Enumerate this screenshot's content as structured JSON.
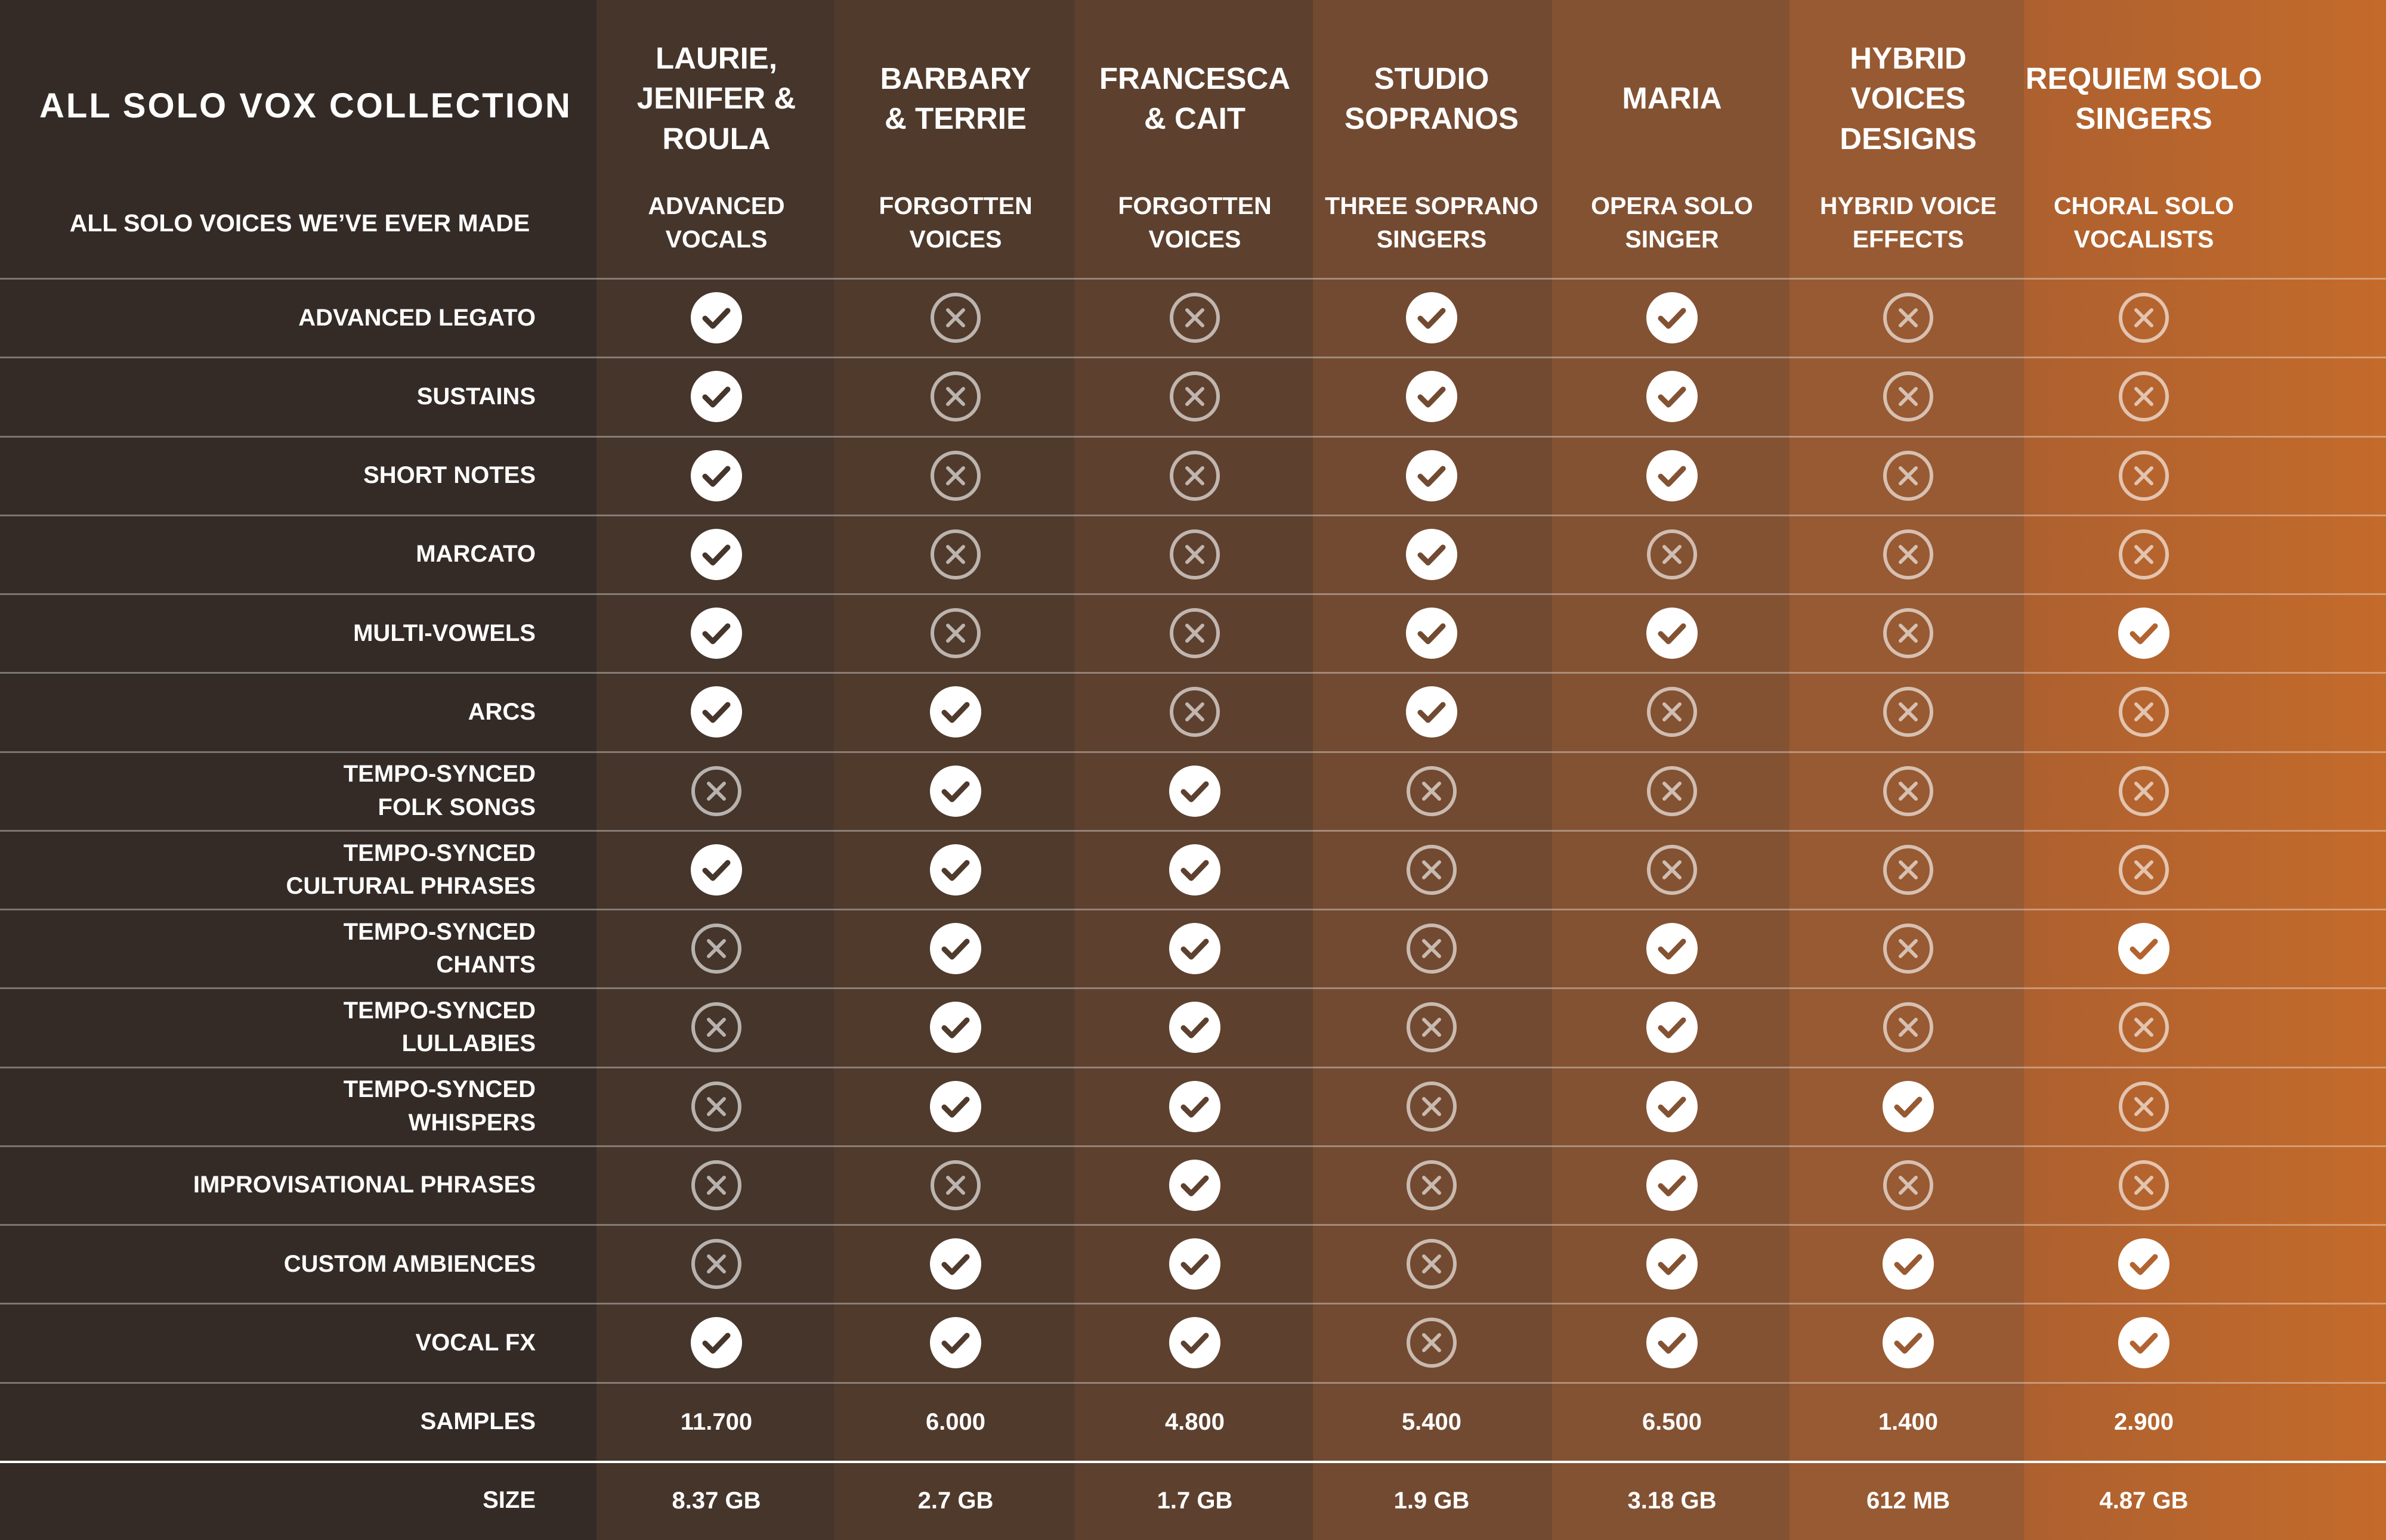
{
  "header": {
    "title": "ALL SOLO VOX COLLECTION",
    "subtitle": "ALL SOLO VOICES WE’VE EVER MADE"
  },
  "columns": [
    {
      "name": "LAURIE,\nJENIFER &\nROULA",
      "subtitle": "ADVANCED\nVOCALS"
    },
    {
      "name": "BARBARY\n& TERRIE",
      "subtitle": "FORGOTTEN\nVOICES"
    },
    {
      "name": "FRANCESCA\n& CAIT",
      "subtitle": "FORGOTTEN\nVOICES"
    },
    {
      "name": "STUDIO\nSOPRANOS",
      "subtitle": "THREE SOPRANO\nSINGERS"
    },
    {
      "name": "MARIA",
      "subtitle": "OPERA SOLO\nSINGER"
    },
    {
      "name": "HYBRID\nVOICES\nDESIGNS",
      "subtitle": "HYBRID VOICE\nEFFECTS"
    },
    {
      "name": "REQUIEM SOLO\nSINGERS",
      "subtitle": "CHORAL SOLO\nVOCALISTS"
    }
  ],
  "rows": [
    {
      "label": "ADVANCED LEGATO",
      "values": [
        true,
        false,
        false,
        true,
        true,
        false,
        false
      ]
    },
    {
      "label": "SUSTAINS",
      "values": [
        true,
        false,
        false,
        true,
        true,
        false,
        false
      ]
    },
    {
      "label": "SHORT NOTES",
      "values": [
        true,
        false,
        false,
        true,
        true,
        false,
        false
      ]
    },
    {
      "label": "MARCATO",
      "values": [
        true,
        false,
        false,
        true,
        false,
        false,
        false
      ]
    },
    {
      "label": "MULTI-VOWELS",
      "values": [
        true,
        false,
        false,
        true,
        true,
        false,
        true
      ]
    },
    {
      "label": "ARCS",
      "values": [
        true,
        true,
        false,
        true,
        false,
        false,
        false
      ]
    },
    {
      "label": "TEMPO-SYNCED\nFOLK SONGS",
      "values": [
        false,
        true,
        true,
        false,
        false,
        false,
        false
      ]
    },
    {
      "label": "TEMPO-SYNCED\nCULTURAL PHRASES",
      "values": [
        true,
        true,
        true,
        false,
        false,
        false,
        false
      ]
    },
    {
      "label": "TEMPO-SYNCED\nCHANTS",
      "values": [
        false,
        true,
        true,
        false,
        true,
        false,
        true
      ]
    },
    {
      "label": "TEMPO-SYNCED\nLULLABIES",
      "values": [
        false,
        true,
        true,
        false,
        true,
        false,
        false
      ]
    },
    {
      "label": "TEMPO-SYNCED\nWHISPERS",
      "values": [
        false,
        true,
        true,
        false,
        true,
        true,
        false
      ]
    },
    {
      "label": "IMPROVISATIONAL PHRASES",
      "values": [
        false,
        false,
        true,
        false,
        true,
        false,
        false
      ]
    },
    {
      "label": "CUSTOM AMBIENCES",
      "values": [
        false,
        true,
        true,
        false,
        true,
        true,
        true
      ]
    },
    {
      "label": "VOCAL FX",
      "values": [
        true,
        true,
        true,
        false,
        true,
        true,
        true
      ]
    }
  ],
  "samples": {
    "label": "SAMPLES",
    "values": [
      "11.700",
      "6.000",
      "4.800",
      "5.400",
      "6.500",
      "1.400",
      "2.900"
    ]
  },
  "size": {
    "label": "SIZE",
    "values": [
      "8.37 GB",
      "2.7 GB",
      "1.7 GB",
      "1.9 GB",
      "3.18 GB",
      "612 MB",
      "4.87 GB"
    ]
  }
}
